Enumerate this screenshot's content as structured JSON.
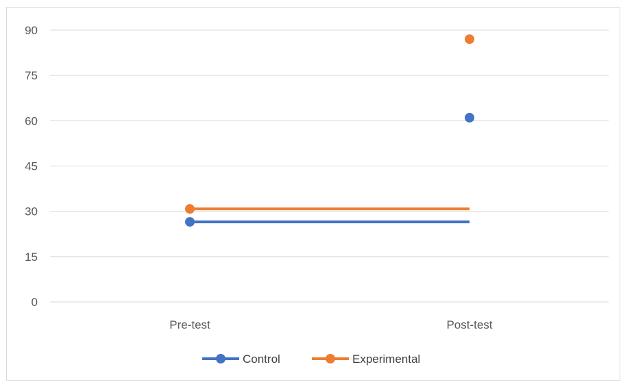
{
  "chart_data": {
    "type": "line",
    "categories": [
      "Pre-test",
      "Post-test"
    ],
    "series": [
      {
        "name": "Control",
        "values": [
          26.5,
          61
        ],
        "color": "#4472c4"
      },
      {
        "name": "Experimental",
        "values": [
          30.8,
          87
        ],
        "color": "#ed7d31"
      }
    ],
    "ylim": [
      0,
      90
    ],
    "yticks": [
      0,
      15,
      30,
      45,
      60,
      75,
      90
    ],
    "grid": true,
    "legend_position": "bottom",
    "title": "",
    "xlabel": "",
    "ylabel": ""
  }
}
